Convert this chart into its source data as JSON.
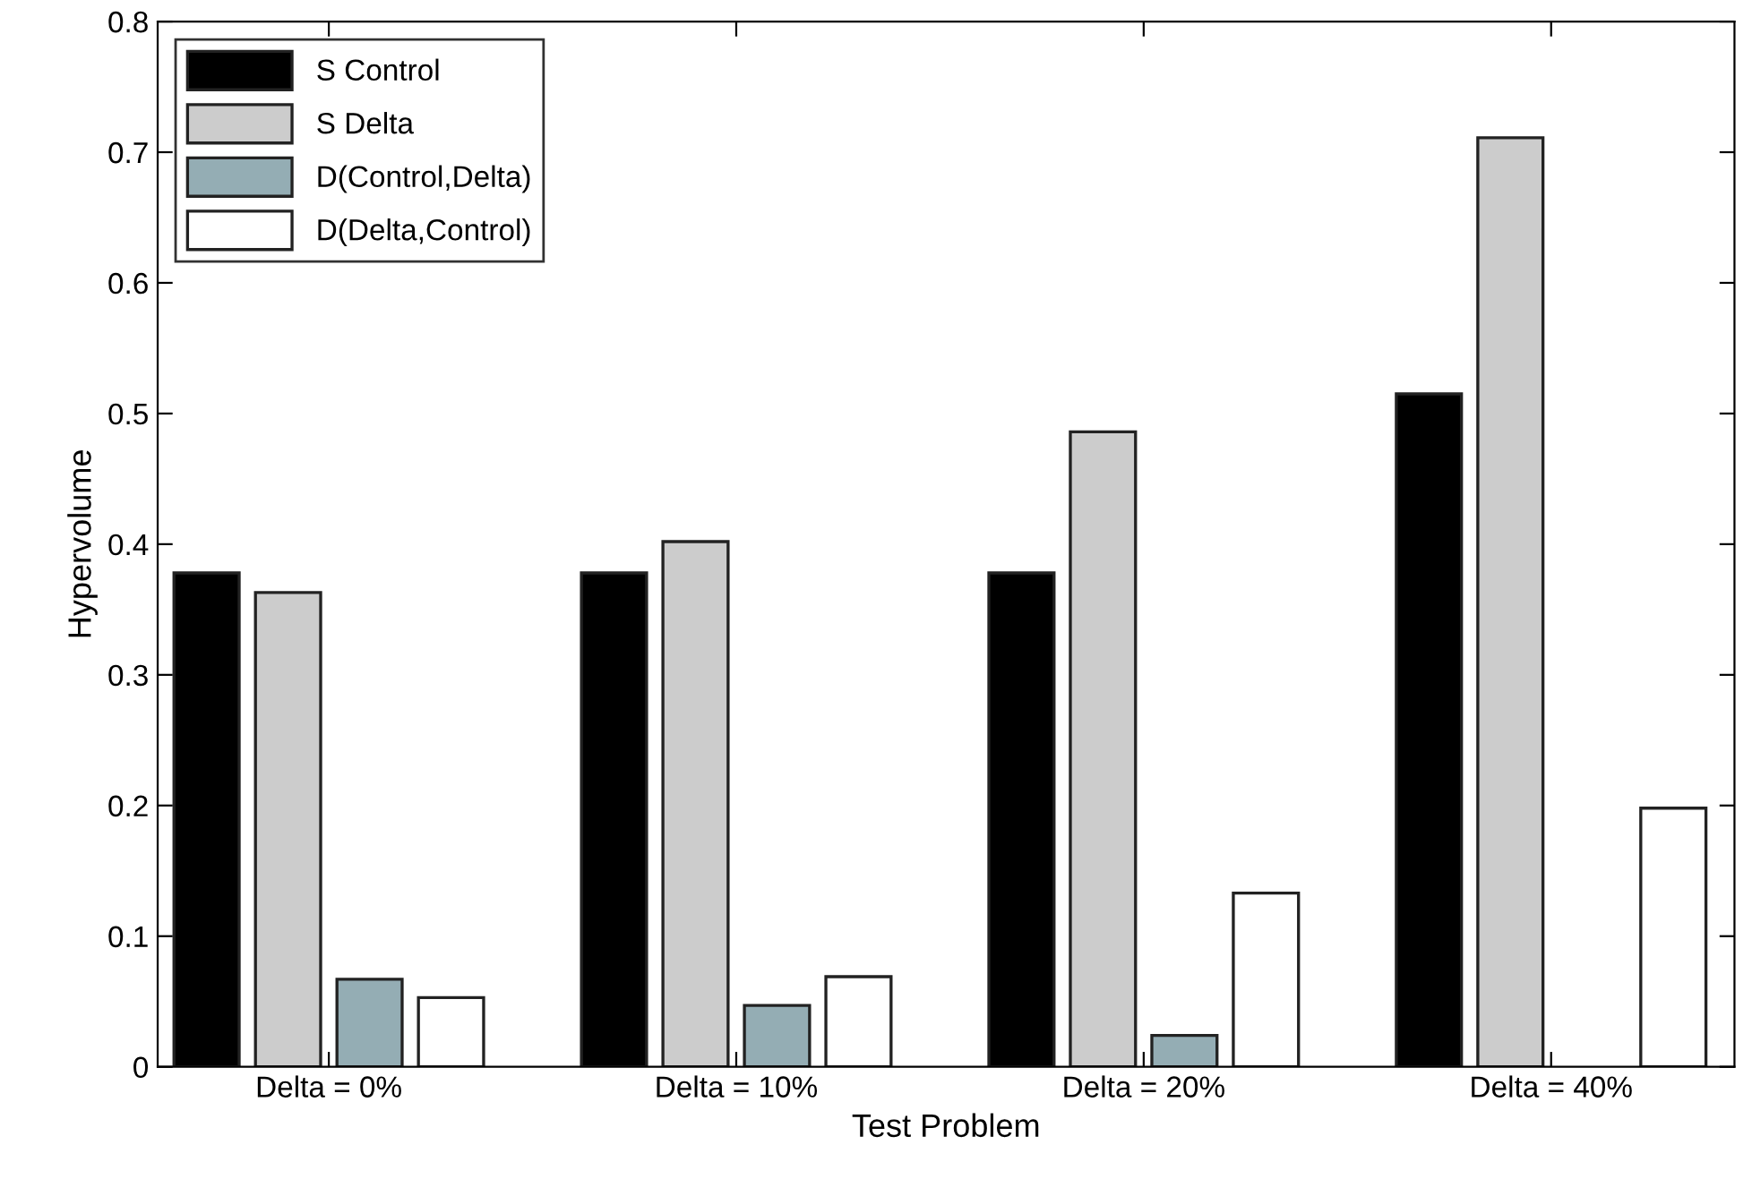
{
  "chart_data": {
    "type": "bar",
    "xlabel": "Test Problem",
    "ylabel": "Hypervolume",
    "categories": [
      "Delta = 0%",
      "Delta = 10%",
      "Delta = 20%",
      "Delta = 40%"
    ],
    "series": [
      {
        "name": "S Control",
        "color": "#000000",
        "values": [
          0.378,
          0.378,
          0.378,
          0.515
        ]
      },
      {
        "name": "S Delta",
        "color": "#cccccc",
        "values": [
          0.363,
          0.402,
          0.486,
          0.711
        ]
      },
      {
        "name": "D(Control,Delta)",
        "color": "#94adb4",
        "values": [
          0.067,
          0.047,
          0.024,
          null
        ]
      },
      {
        "name": "D(Delta,Control)",
        "color": "#ffffff",
        "values": [
          0.053,
          0.069,
          0.133,
          0.198
        ]
      }
    ],
    "ylim": [
      0,
      0.8
    ],
    "yticks": [
      {
        "value": 0,
        "label": "0"
      },
      0.1,
      0.2,
      0.3,
      0.4,
      0.5,
      0.6,
      0.7,
      0.8
    ],
    "legend": "top left",
    "grid": false
  }
}
